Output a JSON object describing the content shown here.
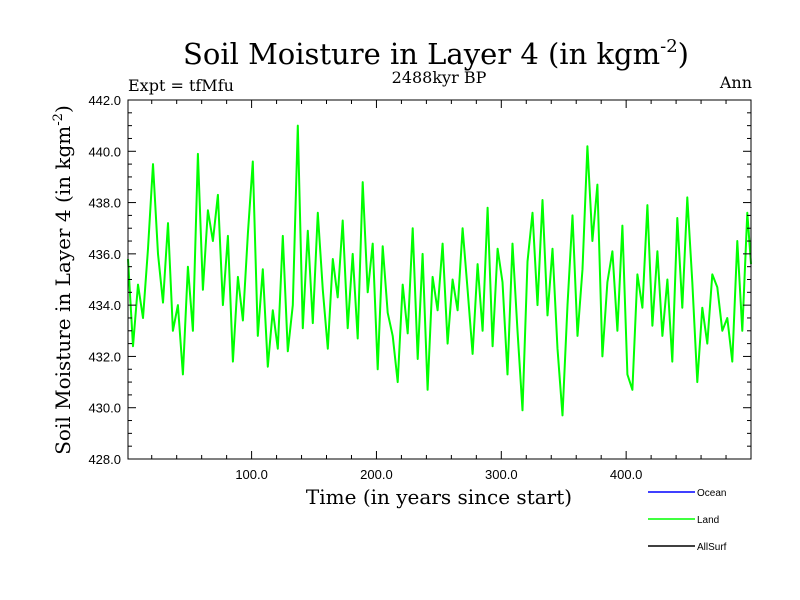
{
  "chart_data": {
    "type": "line",
    "title_main": "Soil Moisture in Layer 4 (in kgm",
    "title_exp": "-2",
    "title_close": ")",
    "subtitle_left": "Expt = tfMfu",
    "subtitle_center": "2488kyr BP",
    "subtitle_right": "Ann",
    "ylabel_main": "Soil Moisture in Layer 4 (in kgm",
    "ylabel_exp": "-2",
    "ylabel_close": ")",
    "xlabel": "Time (in years since start)",
    "xlim": [
      1,
      500
    ],
    "ylim": [
      428,
      442
    ],
    "xticks": [
      100,
      200,
      300,
      400
    ],
    "xtick_labels": [
      "100.0",
      "200.0",
      "300.0",
      "400.0"
    ],
    "yticks": [
      428,
      430,
      432,
      434,
      436,
      438,
      440,
      442
    ],
    "ytick_labels": [
      "428.0",
      "430.0",
      "432.0",
      "434.0",
      "436.0",
      "438.0",
      "440.0",
      "442.0"
    ],
    "legend": [
      {
        "name": "Ocean",
        "color": "#0000ff"
      },
      {
        "name": "Land",
        "color": "#00ff00"
      },
      {
        "name": "AllSurf",
        "color": "#000000"
      }
    ],
    "series": [
      {
        "name": "Land",
        "color": "#00ff00",
        "x": [
          1,
          5,
          9,
          13,
          17,
          21,
          25,
          29,
          33,
          37,
          41,
          45,
          49,
          53,
          57,
          61,
          65,
          69,
          73,
          77,
          81,
          85,
          89,
          93,
          97,
          101,
          105,
          109,
          113,
          117,
          121,
          125,
          129,
          133,
          137,
          141,
          145,
          149,
          153,
          157,
          161,
          165,
          169,
          173,
          177,
          181,
          185,
          189,
          193,
          197,
          201,
          205,
          209,
          213,
          217,
          221,
          225,
          229,
          233,
          237,
          241,
          245,
          249,
          253,
          257,
          261,
          265,
          269,
          273,
          277,
          281,
          285,
          289,
          293,
          297,
          301,
          305,
          309,
          313,
          317,
          321,
          325,
          329,
          333,
          337,
          341,
          345,
          349,
          353,
          357,
          361,
          365,
          369,
          373,
          377,
          381,
          385,
          389,
          393,
          397,
          401,
          405,
          409,
          413,
          417,
          421,
          425,
          429,
          433,
          437,
          441,
          445,
          449,
          453,
          457,
          461,
          465,
          469,
          473,
          477,
          481,
          485,
          489,
          493,
          497,
          500
        ],
        "values": [
          435.8,
          432.4,
          434.8,
          433.5,
          436.2,
          439.5,
          436.0,
          434.1,
          437.2,
          433.0,
          434.0,
          431.3,
          435.5,
          433.0,
          439.9,
          434.6,
          437.7,
          436.5,
          438.3,
          434.0,
          436.7,
          431.8,
          435.1,
          433.4,
          436.8,
          439.6,
          432.8,
          435.4,
          431.6,
          433.8,
          432.3,
          436.7,
          432.2,
          434.0,
          441.0,
          433.1,
          436.9,
          433.3,
          437.6,
          434.6,
          432.3,
          435.8,
          434.3,
          437.3,
          433.1,
          436.0,
          432.7,
          438.8,
          434.5,
          436.4,
          431.5,
          436.3,
          433.7,
          432.8,
          431.0,
          434.8,
          432.9,
          437.0,
          431.9,
          436.0,
          430.7,
          435.1,
          433.8,
          436.4,
          432.5,
          435.0,
          433.8,
          437.0,
          434.6,
          432.1,
          435.6,
          433.0,
          437.8,
          432.4,
          436.2,
          434.9,
          431.3,
          436.4,
          433.0,
          429.9,
          435.7,
          437.6,
          434.0,
          438.1,
          433.6,
          436.2,
          432.3,
          429.7,
          434.0,
          437.5,
          432.8,
          435.4,
          440.2,
          436.5,
          438.7,
          432.0,
          434.9,
          436.1,
          433.0,
          437.1,
          431.3,
          430.7,
          435.2,
          433.9,
          437.9,
          433.2,
          436.1,
          432.8,
          435.0,
          431.8,
          437.4,
          433.9,
          438.2,
          434.9,
          431.0,
          433.9,
          432.5,
          435.2,
          434.7,
          433.0,
          433.5,
          431.8,
          436.5,
          433.0,
          437.6,
          435.6
        ]
      }
    ]
  }
}
